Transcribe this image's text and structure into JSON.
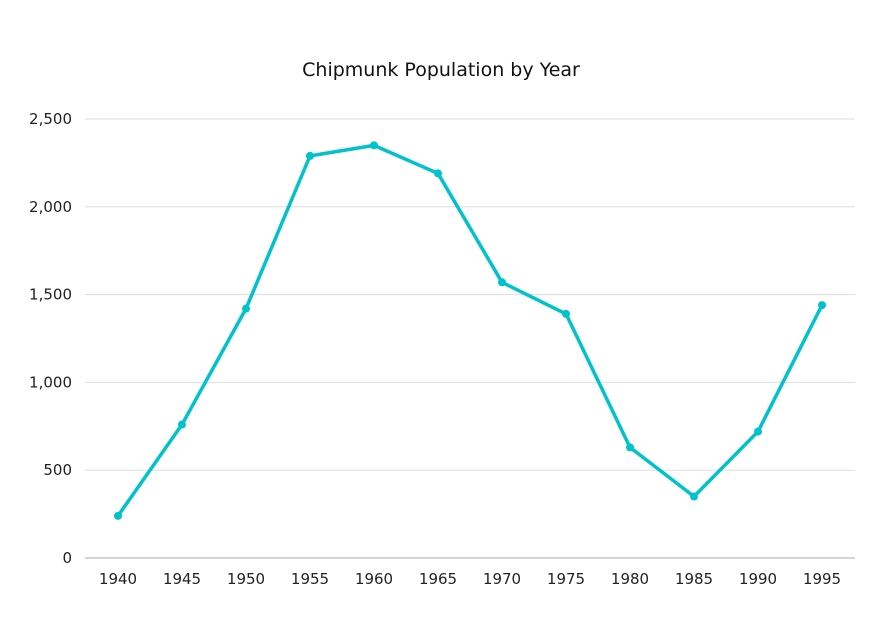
{
  "chart_data": {
    "type": "line",
    "title": "Chipmunk Population by Year",
    "xlabel": "",
    "ylabel": "",
    "x": [
      1940,
      1945,
      1950,
      1955,
      1960,
      1965,
      1970,
      1975,
      1980,
      1985,
      1990,
      1995
    ],
    "series": [
      {
        "name": "Population",
        "values": [
          240,
          760,
          1420,
          2290,
          2350,
          2190,
          1570,
          1390,
          630,
          350,
          720,
          1440
        ],
        "color": "#00c2cc"
      }
    ],
    "ylim": [
      0,
      2500
    ],
    "yticks": [
      0,
      500,
      1000,
      1500,
      2000,
      2500
    ],
    "ytick_labels": [
      "0",
      "500",
      "1,000",
      "1,500",
      "2,000",
      "2,500"
    ],
    "xtick_labels": [
      "1940",
      "1945",
      "1950",
      "1955",
      "1960",
      "1965",
      "1970",
      "1975",
      "1980",
      "1985",
      "1990",
      "1995"
    ],
    "grid": true,
    "legend": "none"
  }
}
